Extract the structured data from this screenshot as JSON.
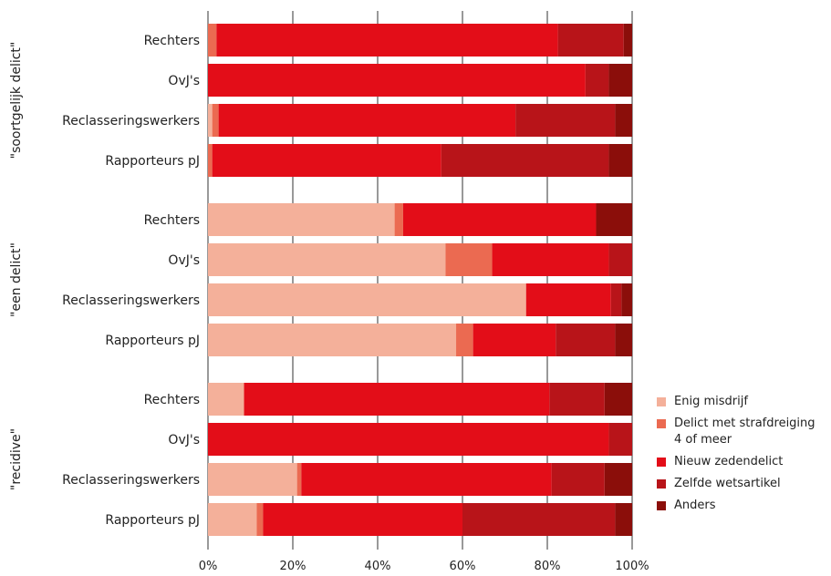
{
  "chart_data": {
    "type": "bar",
    "orientation": "horizontal",
    "stacked": true,
    "xlim": [
      0,
      100
    ],
    "x_ticks": [
      "0%",
      "20%",
      "40%",
      "60%",
      "80%",
      "100%"
    ],
    "grid": true,
    "legend_position": "bottom-right",
    "series": [
      {
        "name": "Enig misdrijf",
        "color": "#f4b09a"
      },
      {
        "name": "Delict met strafdreiging\n4 of meer",
        "color": "#eb6a51"
      },
      {
        "name": "Nieuw zedendelict",
        "color": "#e30d18"
      },
      {
        "name": "Zelfde wetsartikel",
        "color": "#b81419"
      },
      {
        "name": "Anders",
        "color": "#8b0e0a"
      }
    ],
    "groups": [
      {
        "label": "\"soortgelijk delict\"",
        "rows": [
          {
            "label": "Rechters",
            "values": [
              0,
              2,
              80.5,
              15.5,
              2
            ]
          },
          {
            "label": "OvJ's",
            "values": [
              0,
              0,
              89,
              5.5,
              5.5
            ]
          },
          {
            "label": "Reclasseringswerkers",
            "values": [
              1,
              1.5,
              70,
              23.5,
              4
            ]
          },
          {
            "label": "Rapporteurs pJ",
            "values": [
              0,
              1,
              54,
              39.5,
              5.5
            ]
          }
        ]
      },
      {
        "label": "\"een delict\"",
        "rows": [
          {
            "label": "Rechters",
            "values": [
              44,
              2,
              45.5,
              0,
              8.5
            ]
          },
          {
            "label": "OvJ's",
            "values": [
              56,
              11,
              27.5,
              5.5,
              0
            ]
          },
          {
            "label": "Reclasseringswerkers",
            "values": [
              75,
              0,
              20,
              2.5,
              2.5
            ]
          },
          {
            "label": "Rapporteurs pJ",
            "values": [
              58.5,
              4,
              19.5,
              14,
              4
            ]
          }
        ]
      },
      {
        "label": "\"recidive\"",
        "rows": [
          {
            "label": "Rechters",
            "values": [
              8.5,
              0,
              72,
              13,
              6.5
            ]
          },
          {
            "label": "OvJ's",
            "values": [
              0,
              0,
              94.5,
              5.5,
              0
            ]
          },
          {
            "label": "Reclasseringswerkers",
            "values": [
              21,
              1,
              59,
              12.5,
              6.5
            ]
          },
          {
            "label": "Rapporteurs pJ",
            "values": [
              11.5,
              1.5,
              47,
              36,
              4
            ]
          }
        ]
      }
    ]
  }
}
